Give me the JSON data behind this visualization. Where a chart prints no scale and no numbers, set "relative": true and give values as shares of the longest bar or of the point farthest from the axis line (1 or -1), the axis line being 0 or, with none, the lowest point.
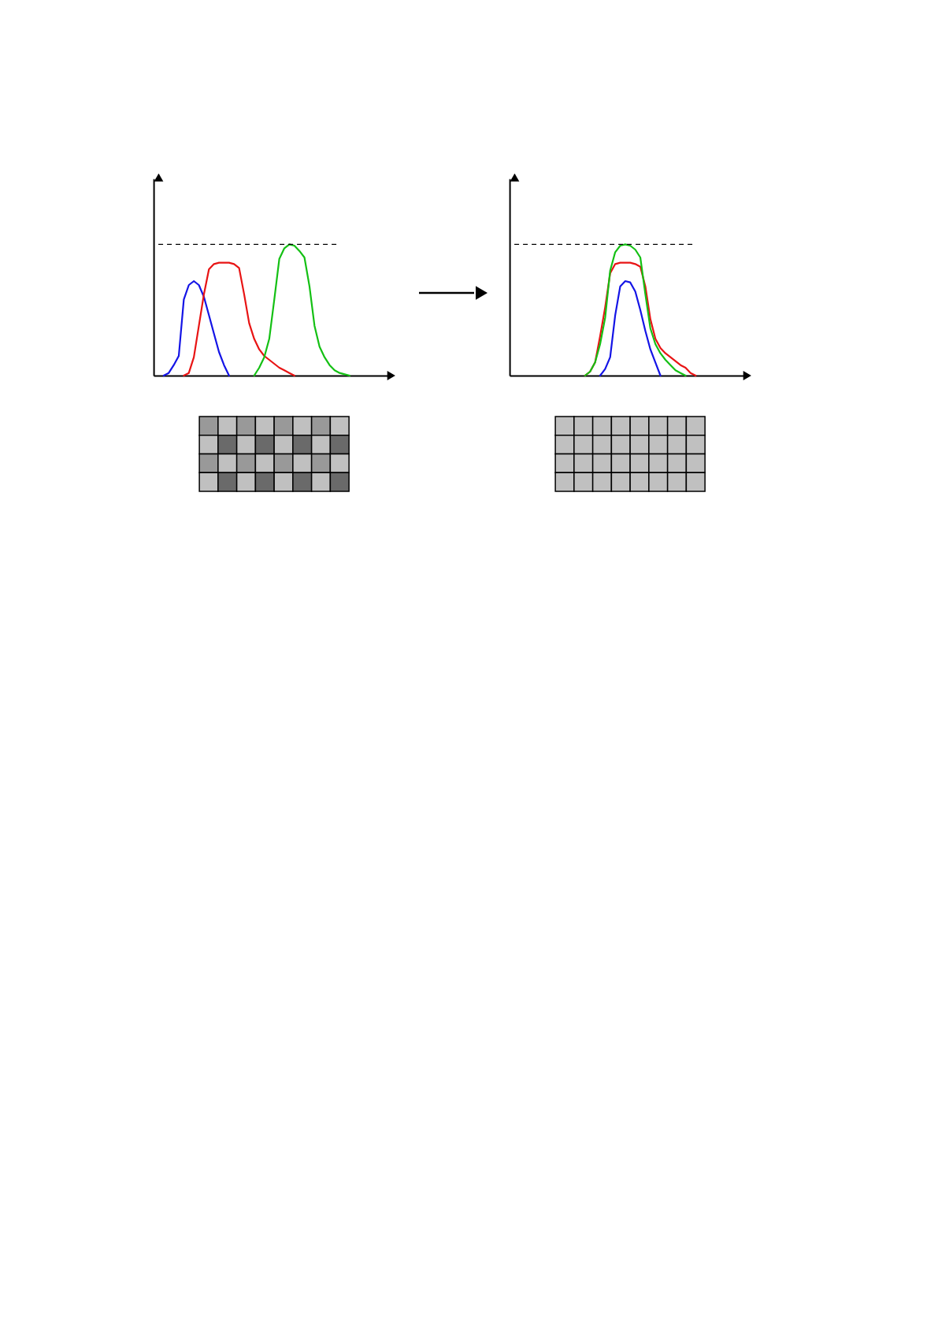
{
  "chart_data": [
    {
      "type": "line",
      "relative": true,
      "grid": false,
      "categories": [
        null,
        null,
        null,
        null,
        null,
        null,
        null,
        null,
        null,
        null,
        null,
        null,
        null,
        null,
        null,
        null,
        null,
        null,
        null,
        null,
        null,
        null,
        null,
        null,
        null,
        null,
        null,
        null,
        null,
        null,
        null,
        null,
        null,
        null,
        null,
        null,
        null,
        null,
        null,
        null,
        null,
        null,
        null,
        null,
        null
      ],
      "series": [
        {
          "color": "#1414e6",
          "values": [
            null,
            0,
            0.02,
            0.08,
            0.15,
            0.58,
            0.69,
            0.72,
            0.69,
            0.6,
            0.46,
            0.32,
            0.18,
            0.08,
            0,
            null,
            null,
            null,
            null,
            null,
            null,
            null,
            null,
            null,
            null,
            null,
            null,
            null,
            null,
            null,
            null,
            null,
            null,
            null,
            null,
            null,
            null,
            null,
            null,
            null,
            null,
            null,
            null,
            null,
            null
          ]
        },
        {
          "color": "#e81414",
          "values": [
            null,
            null,
            null,
            null,
            null,
            0,
            0.02,
            0.14,
            0.38,
            0.62,
            0.81,
            0.85,
            0.86,
            0.86,
            0.86,
            0.85,
            0.82,
            0.62,
            0.4,
            0.28,
            0.2,
            0.15,
            0.12,
            0.09,
            0.06,
            0.04,
            0.02,
            0,
            null,
            null,
            null,
            null,
            null,
            null,
            null,
            null,
            null,
            null,
            null,
            null,
            null,
            null,
            null,
            null,
            null
          ]
        },
        {
          "color": "#14c014",
          "values": [
            null,
            null,
            null,
            null,
            null,
            null,
            null,
            null,
            null,
            null,
            null,
            null,
            null,
            null,
            null,
            null,
            null,
            null,
            null,
            0,
            0.06,
            0.14,
            0.28,
            0.58,
            0.89,
            0.97,
            1.0,
            0.99,
            0.95,
            0.9,
            0.68,
            0.38,
            0.22,
            0.14,
            0.08,
            0.04,
            0.02,
            0.01,
            0,
            null,
            null,
            null,
            null,
            null,
            null
          ]
        }
      ],
      "ref_lines": [
        {
          "axis": "y",
          "value": 1.0,
          "color": "#000000",
          "line_style": "dashed"
        }
      ]
    },
    {
      "type": "line",
      "relative": true,
      "grid": false,
      "categories": [
        null,
        null,
        null,
        null,
        null,
        null,
        null,
        null,
        null,
        null,
        null,
        null,
        null,
        null,
        null,
        null,
        null,
        null,
        null,
        null,
        null,
        null,
        null,
        null,
        null,
        null,
        null,
        null,
        null,
        null,
        null,
        null,
        null,
        null,
        null,
        null,
        null,
        null,
        null,
        null,
        null,
        null,
        null,
        null,
        null
      ],
      "series": [
        {
          "color": "#1414e6",
          "values": [
            null,
            null,
            null,
            null,
            null,
            null,
            null,
            null,
            null,
            null,
            null,
            null,
            null,
            null,
            null,
            null,
            null,
            0,
            0.05,
            0.14,
            0.46,
            0.68,
            0.72,
            0.71,
            0.64,
            0.5,
            0.34,
            0.2,
            0.1,
            0,
            null,
            null,
            null,
            null,
            null,
            null,
            null,
            null,
            null,
            null,
            null,
            null,
            null,
            null,
            null
          ]
        },
        {
          "color": "#e81414",
          "values": [
            null,
            null,
            null,
            null,
            null,
            null,
            null,
            null,
            null,
            null,
            null,
            null,
            null,
            null,
            0,
            0.03,
            0.1,
            0.3,
            0.52,
            0.78,
            0.85,
            0.86,
            0.86,
            0.86,
            0.85,
            0.83,
            0.68,
            0.43,
            0.28,
            0.21,
            0.17,
            0.14,
            0.11,
            0.08,
            0.06,
            0.02,
            0,
            null,
            null,
            null,
            null,
            null,
            null,
            null,
            null
          ]
        },
        {
          "color": "#14c014",
          "values": [
            null,
            null,
            null,
            null,
            null,
            null,
            null,
            null,
            null,
            null,
            null,
            null,
            null,
            null,
            0,
            0.03,
            0.1,
            0.24,
            0.44,
            0.8,
            0.94,
            0.99,
            1.0,
            0.99,
            0.96,
            0.9,
            0.62,
            0.36,
            0.24,
            0.17,
            0.12,
            0.08,
            0.04,
            0.02,
            0,
            null,
            null,
            null,
            null,
            null,
            null,
            null,
            null,
            null,
            null
          ]
        }
      ],
      "ref_lines": [
        {
          "axis": "y",
          "value": 1.0,
          "color": "#000000",
          "line_style": "dashed"
        }
      ]
    }
  ]
}
